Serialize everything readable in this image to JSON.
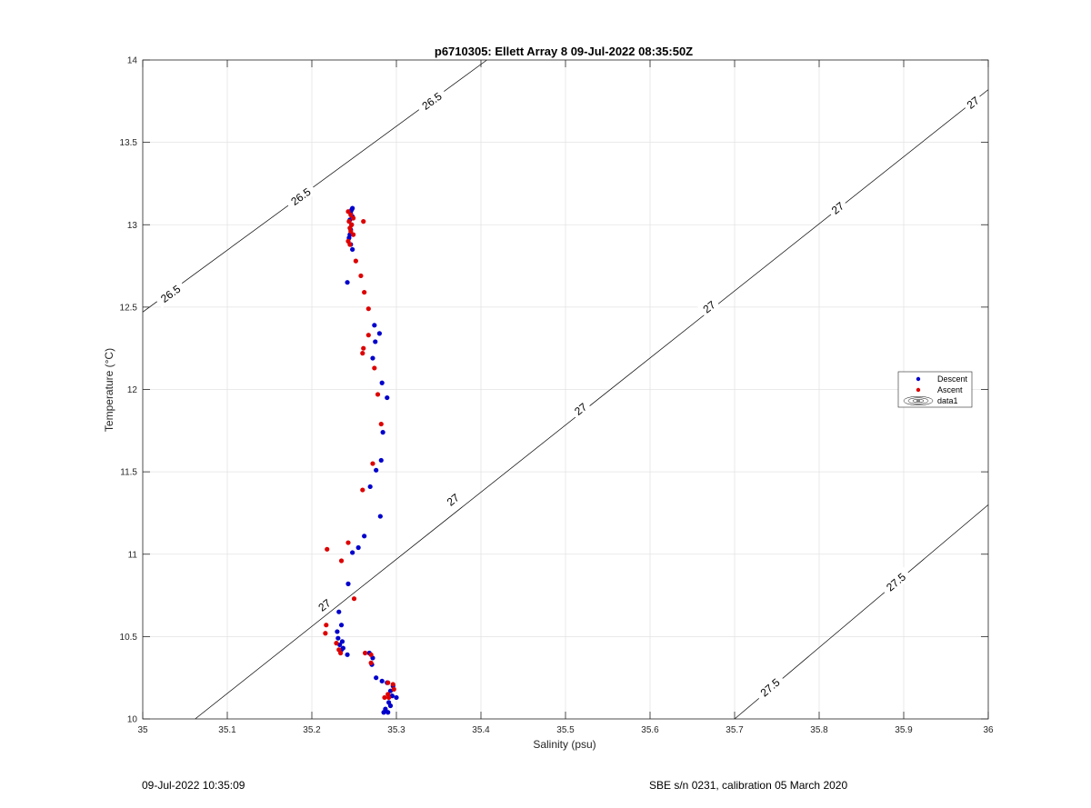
{
  "chart_data": {
    "type": "scatter",
    "title": "p6710305: Ellett Array 8 09-Jul-2022 08:35:50Z",
    "xlabel": "Salinity (psu)",
    "ylabel": "Temperature (°C)",
    "xlim": [
      35,
      36
    ],
    "ylim": [
      10,
      14
    ],
    "xticks": [
      "35",
      "35.1",
      "35.2",
      "35.3",
      "35.4",
      "35.5",
      "35.6",
      "35.7",
      "35.8",
      "35.9",
      "36"
    ],
    "yticks": [
      "10",
      "10.5",
      "11",
      "11.5",
      "12",
      "12.5",
      "13",
      "13.5",
      "14"
    ],
    "grid": true,
    "legend_position": "right",
    "legend": [
      {
        "label": "Descent",
        "color": "#0000cc",
        "marker": "dot"
      },
      {
        "label": "Ascent",
        "color": "#dd0000",
        "marker": "dot"
      },
      {
        "label": "data1",
        "color": "#000000",
        "marker": "contour"
      }
    ],
    "series": [
      {
        "name": "Descent",
        "color": "#0000cc",
        "points": [
          [
            35.248,
            13.1
          ],
          [
            35.247,
            13.09
          ],
          [
            35.246,
            13.07
          ],
          [
            35.248,
            13.05
          ],
          [
            35.245,
            13.03
          ],
          [
            35.247,
            13.0
          ],
          [
            35.246,
            12.97
          ],
          [
            35.245,
            12.94
          ],
          [
            35.244,
            12.92
          ],
          [
            35.246,
            12.88
          ],
          [
            35.248,
            12.85
          ],
          [
            35.242,
            12.65
          ],
          [
            35.274,
            12.39
          ],
          [
            35.28,
            12.34
          ],
          [
            35.275,
            12.29
          ],
          [
            35.272,
            12.19
          ],
          [
            35.283,
            12.04
          ],
          [
            35.289,
            11.95
          ],
          [
            35.284,
            11.74
          ],
          [
            35.282,
            11.57
          ],
          [
            35.276,
            11.51
          ],
          [
            35.269,
            11.41
          ],
          [
            35.281,
            11.23
          ],
          [
            35.262,
            11.11
          ],
          [
            35.255,
            11.04
          ],
          [
            35.248,
            11.01
          ],
          [
            35.243,
            10.82
          ],
          [
            35.232,
            10.65
          ],
          [
            35.235,
            10.57
          ],
          [
            35.23,
            10.53
          ],
          [
            35.231,
            10.49
          ],
          [
            35.236,
            10.47
          ],
          [
            35.233,
            10.45
          ],
          [
            35.237,
            10.43
          ],
          [
            35.235,
            10.42
          ],
          [
            35.242,
            10.39
          ],
          [
            35.268,
            10.4
          ],
          [
            35.272,
            10.37
          ],
          [
            35.271,
            10.33
          ],
          [
            35.276,
            10.25
          ],
          [
            35.283,
            10.23
          ],
          [
            35.289,
            10.22
          ],
          [
            35.296,
            10.2
          ],
          [
            35.293,
            10.17
          ],
          [
            35.295,
            10.14
          ],
          [
            35.3,
            10.13
          ],
          [
            35.291,
            10.1
          ],
          [
            35.293,
            10.08
          ],
          [
            35.287,
            10.06
          ],
          [
            35.285,
            10.04
          ],
          [
            35.29,
            10.04
          ]
        ]
      },
      {
        "name": "Ascent",
        "color": "#dd0000",
        "points": [
          [
            35.243,
            13.08
          ],
          [
            35.246,
            13.06
          ],
          [
            35.249,
            13.04
          ],
          [
            35.244,
            13.02
          ],
          [
            35.261,
            13.02
          ],
          [
            35.247,
            13.0
          ],
          [
            35.245,
            12.98
          ],
          [
            35.246,
            12.96
          ],
          [
            35.249,
            12.94
          ],
          [
            35.243,
            12.9
          ],
          [
            35.245,
            12.88
          ],
          [
            35.252,
            12.78
          ],
          [
            35.258,
            12.69
          ],
          [
            35.262,
            12.59
          ],
          [
            35.267,
            12.49
          ],
          [
            35.267,
            12.33
          ],
          [
            35.261,
            12.25
          ],
          [
            35.26,
            12.22
          ],
          [
            35.274,
            12.13
          ],
          [
            35.278,
            11.97
          ],
          [
            35.282,
            11.79
          ],
          [
            35.272,
            11.55
          ],
          [
            35.26,
            11.39
          ],
          [
            35.243,
            11.07
          ],
          [
            35.218,
            11.03
          ],
          [
            35.235,
            10.96
          ],
          [
            35.25,
            10.73
          ],
          [
            35.217,
            10.57
          ],
          [
            35.216,
            10.52
          ],
          [
            35.229,
            10.46
          ],
          [
            35.232,
            10.42
          ],
          [
            35.234,
            10.4
          ],
          [
            35.263,
            10.4
          ],
          [
            35.27,
            10.39
          ],
          [
            35.27,
            10.34
          ],
          [
            35.29,
            10.22
          ],
          [
            35.296,
            10.21
          ],
          [
            35.297,
            10.18
          ],
          [
            35.29,
            10.15
          ],
          [
            35.291,
            10.13
          ],
          [
            35.286,
            10.13
          ]
        ]
      }
    ],
    "contours": [
      {
        "level": "26.5",
        "points": [
          [
            35.0,
            12.47
          ],
          [
            35.407,
            14.0
          ]
        ]
      },
      {
        "level": "27",
        "points": [
          [
            35.062,
            10.0
          ],
          [
            36.0,
            13.82
          ]
        ]
      },
      {
        "level": "27.5",
        "points": [
          [
            35.7,
            10.0
          ],
          [
            36.0,
            11.3
          ]
        ]
      }
    ],
    "contour_labels": [
      {
        "text": "26.5",
        "at": [
          35.342,
          13.75
        ]
      },
      {
        "text": "26.5",
        "at": [
          35.187,
          13.17
        ]
      },
      {
        "text": "26.5",
        "at": [
          35.033,
          12.58
        ]
      },
      {
        "text": "27",
        "at": [
          35.982,
          13.74
        ]
      },
      {
        "text": "27",
        "at": [
          35.822,
          13.1
        ]
      },
      {
        "text": "27",
        "at": [
          35.67,
          12.5
        ]
      },
      {
        "text": "27",
        "at": [
          35.518,
          11.88
        ]
      },
      {
        "text": "27",
        "at": [
          35.367,
          11.33
        ]
      },
      {
        "text": "27",
        "at": [
          35.215,
          10.69
        ]
      },
      {
        "text": "27.5",
        "at": [
          35.891,
          10.83
        ]
      },
      {
        "text": "27.5",
        "at": [
          35.742,
          10.19
        ]
      }
    ]
  },
  "footer": {
    "timestamp": "09-Jul-2022 10:35:09",
    "calibration": "SBE s/n 0231, calibration 05 March 2020"
  }
}
